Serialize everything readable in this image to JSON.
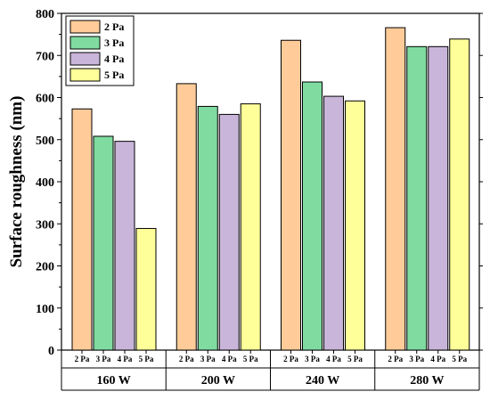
{
  "chart_data": {
    "type": "bar",
    "groups": [
      "160 W",
      "200 W",
      "240 W",
      "280 W"
    ],
    "series": [
      {
        "name": "2 Pa",
        "color": "#FFCC99",
        "values": [
          573,
          633,
          736,
          766
        ]
      },
      {
        "name": "3 Pa",
        "color": "#80DBA0",
        "values": [
          508,
          579,
          637,
          721
        ]
      },
      {
        "name": "4 Pa",
        "color": "#C9B5D9",
        "values": [
          496,
          560,
          603,
          721
        ]
      },
      {
        "name": "5 Pa",
        "color": "#FFFF99",
        "values": [
          289,
          585,
          592,
          739
        ]
      }
    ],
    "sub_labels": [
      "2 Pa",
      "3 Pa",
      "4 Pa",
      "5 Pa"
    ],
    "ylabel": "Surface roughness (nm)",
    "ylim": [
      0,
      800
    ],
    "yticks": [
      0,
      100,
      200,
      300,
      400,
      500,
      600,
      700,
      800
    ],
    "legend_position": "top-left",
    "grid": false
  }
}
